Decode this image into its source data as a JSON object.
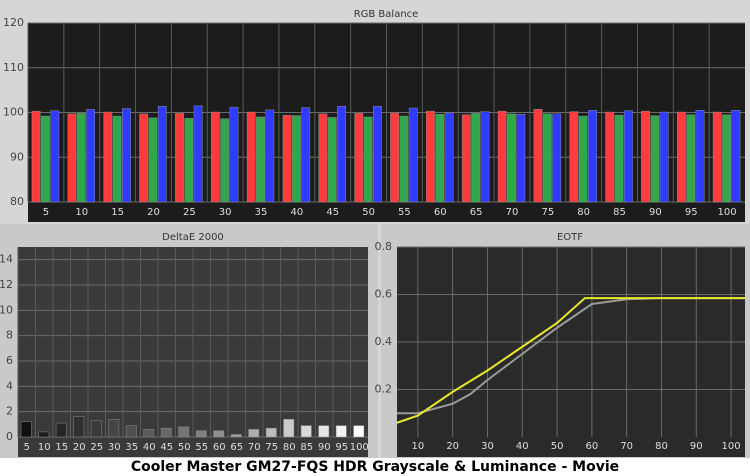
{
  "caption": "Cooler Master GM27-FQS HDR Grayscale & Luminance - Movie",
  "chart_data": [
    {
      "type": "bar",
      "title": "RGB Balance",
      "categories": [
        "5",
        "10",
        "15",
        "20",
        "25",
        "30",
        "35",
        "40",
        "45",
        "50",
        "55",
        "60",
        "65",
        "70",
        "75",
        "80",
        "85",
        "90",
        "95",
        "100"
      ],
      "series": [
        {
          "color": "#ff3b3b",
          "values": [
            100.3,
            99.7,
            100.1,
            99.7,
            99.8,
            100.1,
            100.1,
            99.4,
            99.7,
            99.8,
            99.9,
            100.3,
            99.5,
            100.3,
            100.7,
            100.2,
            100.1,
            100.3,
            100.1,
            100.1
          ]
        },
        {
          "color": "#2ea84a",
          "values": [
            99.2,
            99.8,
            99.2,
            98.8,
            98.7,
            98.6,
            99.0,
            99.3,
            98.9,
            99.0,
            99.2,
            99.6,
            99.8,
            99.7,
            99.7,
            99.2,
            99.4,
            99.3,
            99.5,
            99.5
          ]
        },
        {
          "color": "#2f3bff",
          "values": [
            100.4,
            100.7,
            100.9,
            101.4,
            101.5,
            101.2,
            100.6,
            101.1,
            101.4,
            101.4,
            101.0,
            99.9,
            100.2,
            99.6,
            99.7,
            100.5,
            100.4,
            100.1,
            100.5,
            100.5
          ]
        }
      ],
      "ylim": [
        80,
        120
      ],
      "yticks": [
        80,
        90,
        100,
        110,
        120
      ],
      "grid": true
    },
    {
      "type": "bar",
      "title": "DeltaE 2000",
      "categories": [
        "5",
        "10",
        "15",
        "20",
        "25",
        "30",
        "35",
        "40",
        "45",
        "50",
        "55",
        "60",
        "65",
        "70",
        "75",
        "80",
        "85",
        "90",
        "95",
        "100"
      ],
      "series": [
        {
          "colors": [
            "#111111",
            "#1c1c1c",
            "#262626",
            "#303030",
            "#3a3a3a",
            "#454545",
            "#505050",
            "#5c5c5c",
            "#686868",
            "#757575",
            "#828282",
            "#909090",
            "#9e9e9e",
            "#adadad",
            "#bcbcbc",
            "#cbcbcb",
            "#d9d9d9",
            "#e6e6e6",
            "#f2f2f2",
            "#ffffff"
          ],
          "values": [
            1.2,
            0.4,
            1.1,
            1.6,
            1.3,
            1.4,
            0.9,
            0.6,
            0.7,
            0.8,
            0.5,
            0.5,
            0.2,
            0.6,
            0.7,
            1.4,
            0.9,
            0.9,
            0.9,
            0.9
          ]
        }
      ],
      "ylim": [
        0,
        15
      ],
      "yticks": [
        0,
        2,
        4,
        6,
        8,
        10,
        12,
        14
      ],
      "grid": true
    },
    {
      "type": "line",
      "title": "EOTF",
      "series": [
        {
          "color": "#9a9a9a",
          "x": [
            4,
            10,
            20,
            25,
            30,
            40,
            50,
            55,
            60,
            70,
            80,
            90,
            100,
            104
          ],
          "values": [
            0.1,
            0.1,
            0.14,
            0.18,
            0.24,
            0.35,
            0.46,
            0.51,
            0.56,
            0.58,
            0.585,
            0.585,
            0.585,
            0.585
          ]
        },
        {
          "color": "#e8e82a",
          "x": [
            4,
            10,
            20,
            30,
            40,
            50,
            58,
            60,
            70,
            80,
            90,
            100,
            104
          ],
          "values": [
            0.06,
            0.09,
            0.19,
            0.28,
            0.38,
            0.48,
            0.585,
            0.585,
            0.585,
            0.585,
            0.585,
            0.585,
            0.585
          ]
        }
      ],
      "xlim": [
        4,
        104
      ],
      "xticks": [
        10,
        20,
        30,
        40,
        50,
        60,
        70,
        80,
        90,
        100
      ],
      "ylim": [
        0,
        0.8
      ],
      "yticks": [
        0.2,
        0.4,
        0.6,
        0.8
      ],
      "grid": true
    }
  ]
}
